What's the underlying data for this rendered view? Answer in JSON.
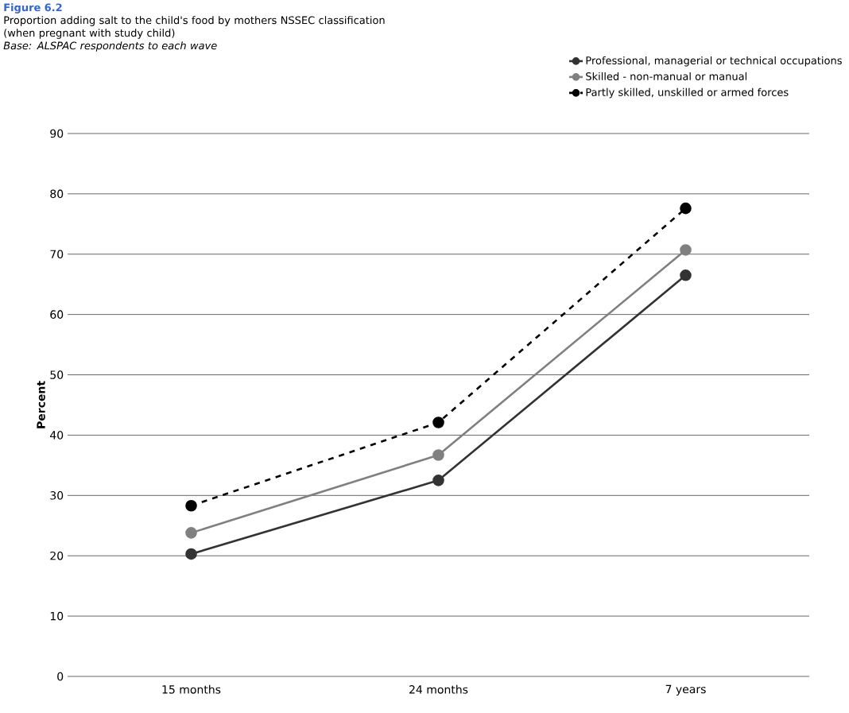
{
  "chart_data": {
    "type": "line",
    "title": "Figure 6.2",
    "subtitle": "Proportion adding salt to the child's food by mothers NSSEC classification (when pregnant with study child)",
    "annotations": [
      "Base: ALSPAC respondents to each wave"
    ],
    "ylabel": "Percent",
    "categories": [
      "15 months",
      "24 months",
      "7 years"
    ],
    "series": [
      {
        "name": "Professional, managerial or technical occupations",
        "color": "#333333",
        "values": [
          20.3,
          32.5,
          66.5
        ],
        "line_style": "solid"
      },
      {
        "name": "Skilled - non-manual or manual",
        "color": "#808080",
        "values": [
          23.8,
          36.7,
          70.7
        ],
        "line_style": "solid"
      },
      {
        "name": "Partly skilled, unskilled or armed forces",
        "color": "#000000",
        "values": [
          28.3,
          42.1,
          77.6
        ],
        "line_style": "dashed"
      }
    ],
    "ylim": [
      0,
      90
    ],
    "yticks": [
      0,
      10,
      20,
      30,
      40,
      50,
      60,
      70,
      80,
      90
    ],
    "grid": "y",
    "legend": "top right",
    "marker": "circle"
  }
}
